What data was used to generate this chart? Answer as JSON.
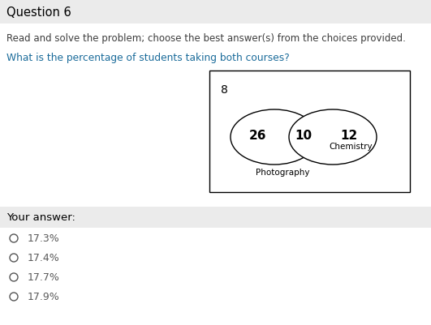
{
  "title": "Question 6",
  "subtitle": "Read and solve the problem; choose the best answer(s) from the choices provided.",
  "question": "What is the percentage of students taking both courses?",
  "venn_outside": "8",
  "venn_left": "26",
  "venn_middle": "10",
  "venn_right": "12",
  "label_left": "Photography",
  "label_right": "Chemistry",
  "your_answer_label": "Your answer:",
  "choices": [
    "17.3%",
    "17.4%",
    "17.7%",
    "17.9%"
  ],
  "bg_color": "#ffffff",
  "header_bg": "#ebebeb",
  "answer_bg": "#ebebeb",
  "title_color": "#000000",
  "subtitle_color": "#3d3d3d",
  "question_color": "#1a6b9a",
  "choice_color": "#5a5a5a",
  "text_color": "#000000",
  "fig_width": 5.31,
  "fig_height": 4.02,
  "dpi": 100
}
